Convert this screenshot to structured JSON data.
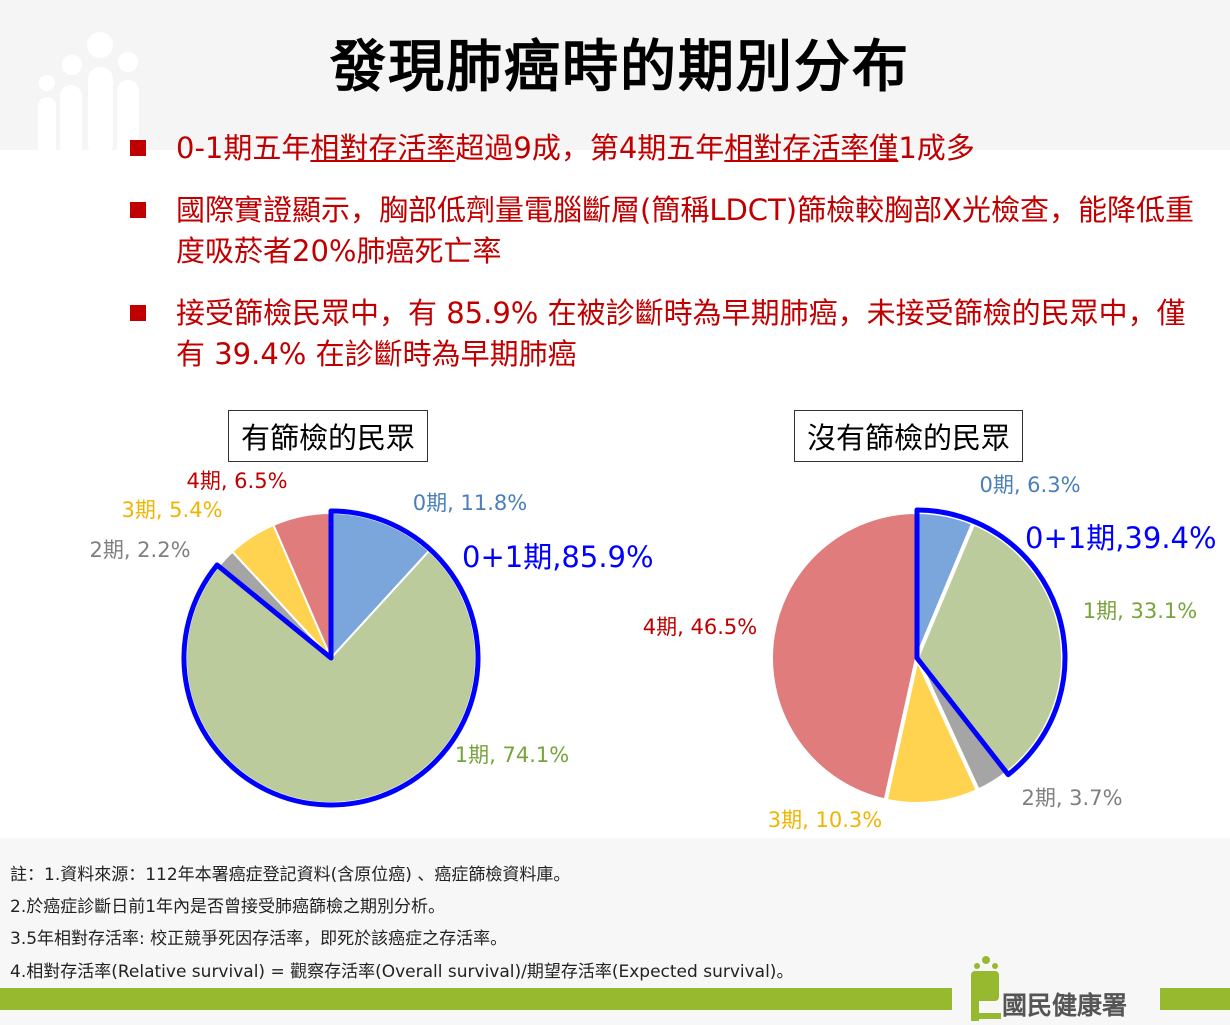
{
  "title": "發現肺癌時的期別分布",
  "bullets": [
    {
      "parts": [
        "0-1期五年",
        "相對存活率",
        "超過9成，第4期五年",
        "相對存活率僅",
        "1成多"
      ]
    },
    {
      "text": "國際實證顯示，胸部低劑量電腦斷層(簡稱LDCT)篩檢較胸部X光檢查，能降低重度吸菸者20%肺癌死亡率"
    },
    {
      "text": "接受篩檢民眾中，有 85.9% 在被診斷時為早期肺癌，未接受篩檢的民眾中，僅有 39.4% 在診斷時為早期肺癌"
    }
  ],
  "chart_data": [
    {
      "type": "pie",
      "title": "有篩檢的民眾",
      "categories": [
        "0期",
        "1期",
        "2期",
        "3期",
        "4期"
      ],
      "values": [
        11.8,
        74.1,
        2.2,
        5.4,
        6.5
      ],
      "labels": [
        "0期, 11.8%",
        "1期, 74.1%",
        "2期, 2.2%",
        "3期, 5.4%",
        "4期, 6.5%"
      ],
      "highlight": {
        "label": "0+1期,85.9%",
        "value": 85.9
      }
    },
    {
      "type": "pie",
      "title": "沒有篩檢的民眾",
      "categories": [
        "0期",
        "1期",
        "2期",
        "3期",
        "4期"
      ],
      "values": [
        6.3,
        33.1,
        3.7,
        10.3,
        46.5
      ],
      "labels": [
        "0期, 6.3%",
        "1期, 33.1%",
        "2期, 3.7%",
        "3期, 10.3%",
        "4期, 46.5%"
      ],
      "highlight": {
        "label": "0+1期,39.4%",
        "value": 39.4
      }
    }
  ],
  "colors": {
    "slices": [
      "#7aa6dc",
      "#bccb9c",
      "#a5a5a5",
      "#ffd34f",
      "#e07c7c"
    ],
    "labels": [
      "#4a7ebb",
      "#77a33a",
      "#7f7f7f",
      "#f0b400",
      "#c00000"
    ],
    "highlight": "#0000ff"
  },
  "notes": [
    "註：1.資料來源：112年本署癌症登記資料(含原位癌) 、癌症篩檢資料庫。",
    "2.於癌症診斷日前1年內是否曾接受肺癌篩檢之期別分析。",
    "3.5年相對存活率: 校正競爭死因存活率，即死於該癌症之存活率。",
    "4.相對存活率(Relative survival) = 觀察存活率(Overall survival)/期望存活率(Expected survival)。"
  ],
  "logo": "國民健康署"
}
